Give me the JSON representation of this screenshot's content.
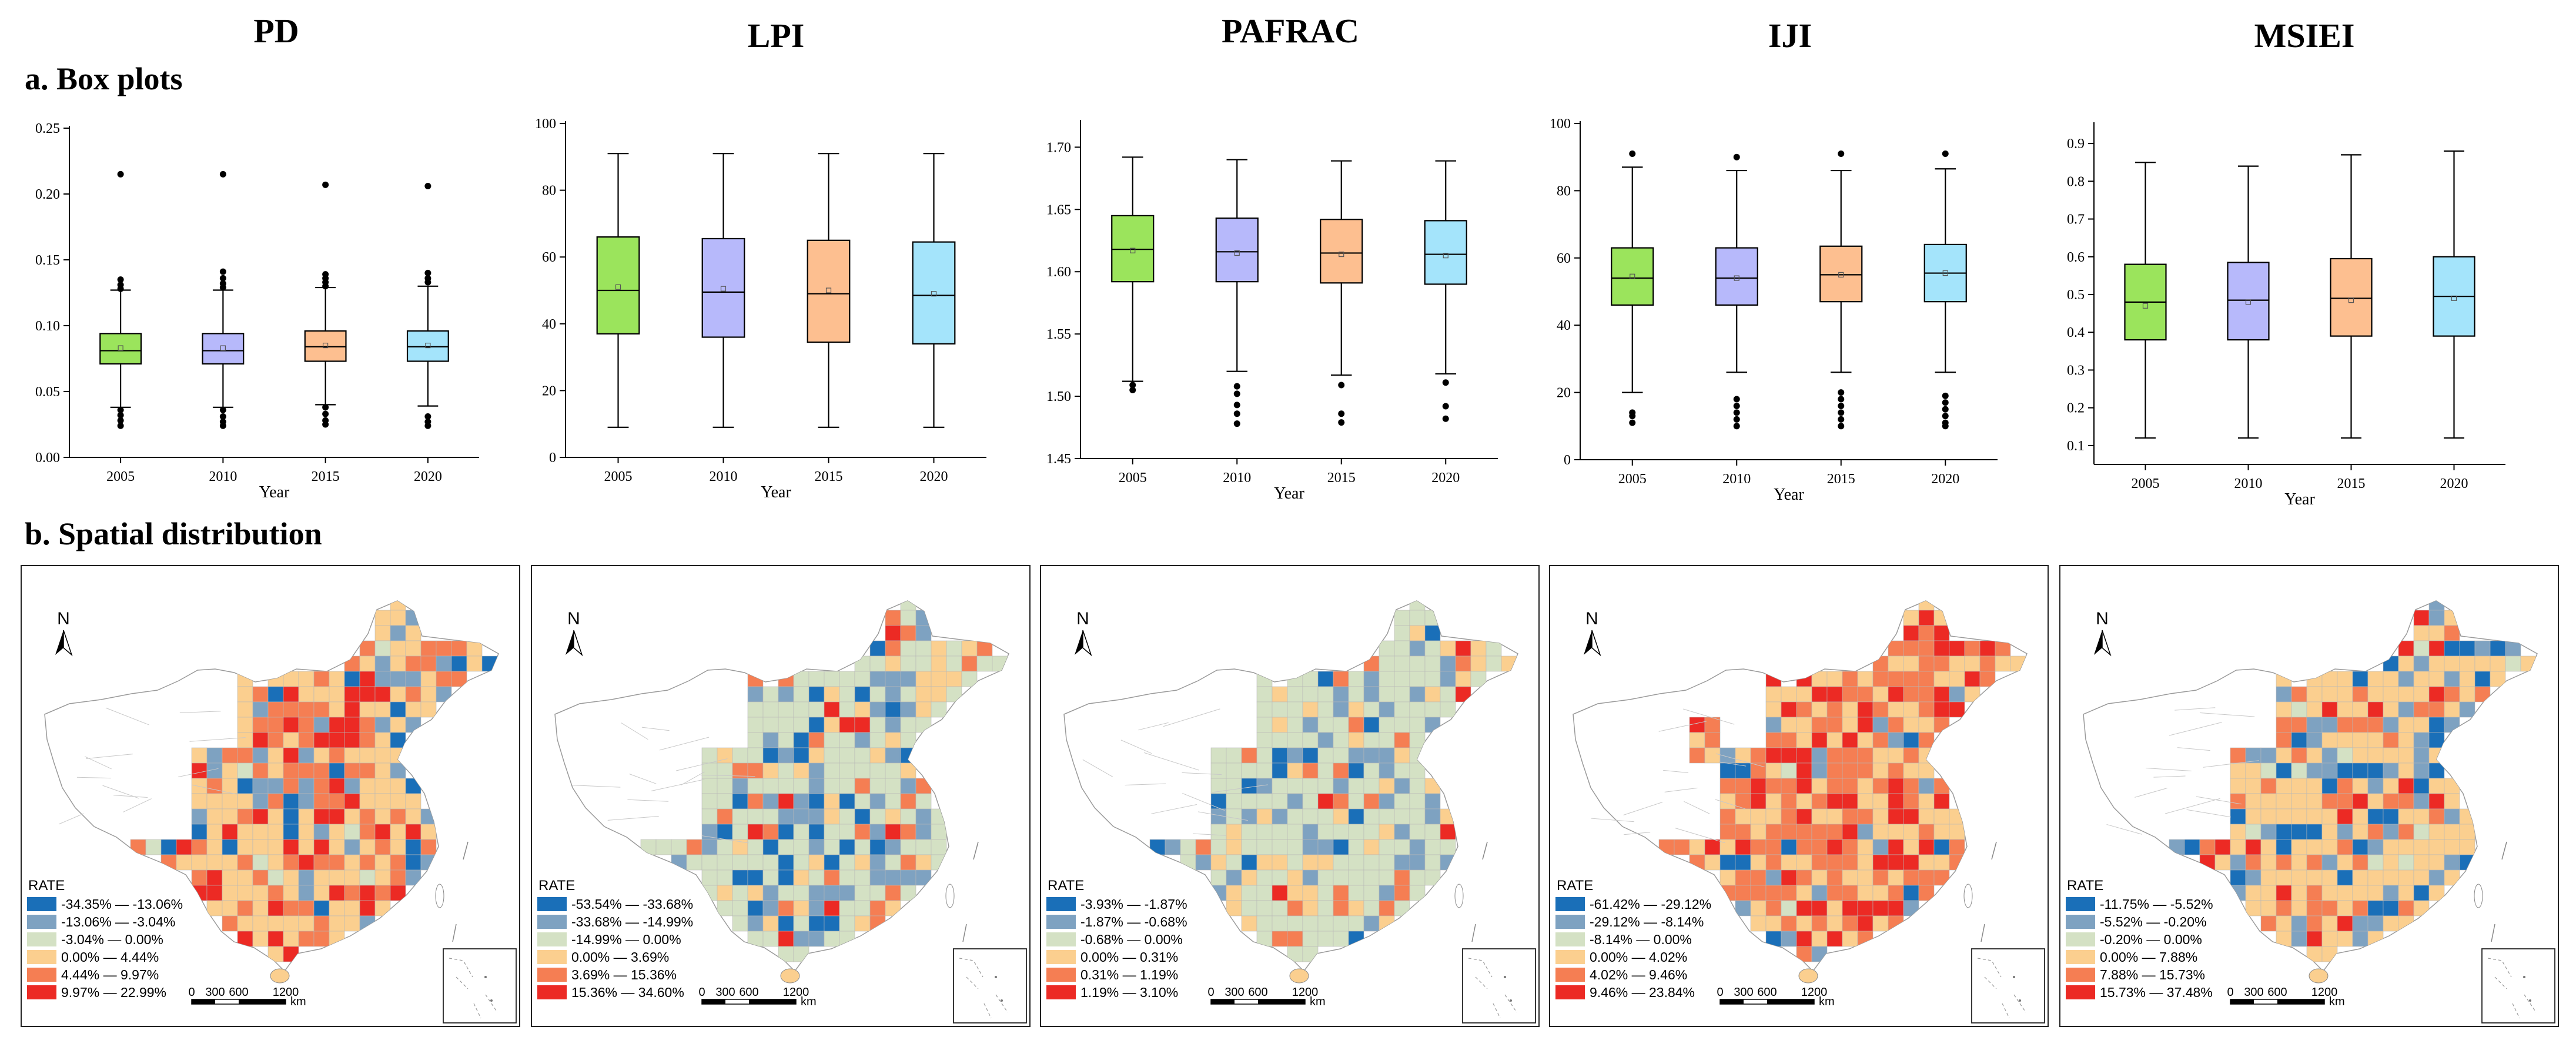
{
  "section_a_title": "a. Box plots",
  "section_b_title": "b. Spatial distribution",
  "colors": {
    "year_fills": [
      "#9be45c",
      "#b7b9fb",
      "#fdbf90",
      "#a4e4fb"
    ],
    "rate_colors": [
      "#1a6fb8",
      "#7ea2c1",
      "#d4e1c4",
      "#fbcf8f",
      "#f57e53",
      "#ec2a24"
    ]
  },
  "chart_data": [
    {
      "type": "box",
      "metric": "PD",
      "title": "PD",
      "xlabel": "Year",
      "categories": [
        "2005",
        "2010",
        "2015",
        "2020"
      ],
      "ylim": [
        0,
        0.25
      ],
      "yticks": [
        0,
        0.05,
        0.1,
        0.15,
        0.2,
        0.25
      ],
      "ytick_labels": [
        "0.00",
        "0.05",
        "0.10",
        "0.15",
        "0.20",
        "0.25"
      ],
      "boxes": [
        {
          "year": "2005",
          "whisker_low": 0.038,
          "q1": 0.071,
          "median": 0.081,
          "q3": 0.094,
          "whisker_high": 0.127,
          "mean": 0.083,
          "outliers": [
            0.215,
            0.135,
            0.131,
            0.128,
            0.036,
            0.032,
            0.028,
            0.024
          ]
        },
        {
          "year": "2010",
          "whisker_low": 0.038,
          "q1": 0.071,
          "median": 0.081,
          "q3": 0.094,
          "whisker_high": 0.127,
          "mean": 0.083,
          "outliers": [
            0.215,
            0.141,
            0.136,
            0.132,
            0.129,
            0.036,
            0.031,
            0.027,
            0.024
          ]
        },
        {
          "year": "2015",
          "whisker_low": 0.04,
          "q1": 0.073,
          "median": 0.084,
          "q3": 0.096,
          "whisker_high": 0.129,
          "mean": 0.085,
          "outliers": [
            0.207,
            0.139,
            0.136,
            0.133,
            0.13,
            0.038,
            0.033,
            0.028,
            0.025
          ]
        },
        {
          "year": "2020",
          "whisker_low": 0.039,
          "q1": 0.073,
          "median": 0.084,
          "q3": 0.096,
          "whisker_high": 0.13,
          "mean": 0.085,
          "outliers": [
            0.206,
            0.14,
            0.136,
            0.133,
            0.031,
            0.027,
            0.024
          ]
        }
      ]
    },
    {
      "type": "box",
      "metric": "LPI",
      "title": "LPI",
      "xlabel": "Year",
      "categories": [
        "2005",
        "2010",
        "2015",
        "2020"
      ],
      "ylim": [
        0,
        100
      ],
      "yticks": [
        0,
        20,
        40,
        60,
        80,
        100
      ],
      "ytick_labels": [
        "0",
        "20",
        "40",
        "60",
        "80",
        "100"
      ],
      "boxes": [
        {
          "year": "2005",
          "whisker_low": 9,
          "q1": 37,
          "median": 50,
          "q3": 66,
          "whisker_high": 91,
          "mean": 51,
          "outliers": []
        },
        {
          "year": "2010",
          "whisker_low": 9,
          "q1": 36,
          "median": 49.5,
          "q3": 65.5,
          "whisker_high": 91,
          "mean": 50.5,
          "outliers": []
        },
        {
          "year": "2015",
          "whisker_low": 9,
          "q1": 34.5,
          "median": 49,
          "q3": 65,
          "whisker_high": 91,
          "mean": 50,
          "outliers": []
        },
        {
          "year": "2020",
          "whisker_low": 9,
          "q1": 34,
          "median": 48.5,
          "q3": 64.5,
          "whisker_high": 91,
          "mean": 49,
          "outliers": []
        }
      ]
    },
    {
      "type": "box",
      "metric": "PAFRAC",
      "title": "PAFRAC",
      "xlabel": "Year",
      "categories": [
        "2005",
        "2010",
        "2015",
        "2020"
      ],
      "ylim": [
        1.45,
        1.72
      ],
      "yticks": [
        1.45,
        1.5,
        1.55,
        1.6,
        1.65,
        1.7
      ],
      "ytick_labels": [
        "1.45",
        "1.50",
        "1.55",
        "1.60",
        "1.65",
        "1.70"
      ],
      "boxes": [
        {
          "year": "2005",
          "whisker_low": 1.512,
          "q1": 1.592,
          "median": 1.618,
          "q3": 1.645,
          "whisker_high": 1.692,
          "mean": 1.617,
          "outliers": [
            1.509,
            1.505
          ]
        },
        {
          "year": "2010",
          "whisker_low": 1.52,
          "q1": 1.592,
          "median": 1.616,
          "q3": 1.643,
          "whisker_high": 1.69,
          "mean": 1.615,
          "outliers": [
            1.508,
            1.502,
            1.493,
            1.486,
            1.478
          ]
        },
        {
          "year": "2015",
          "whisker_low": 1.517,
          "q1": 1.591,
          "median": 1.615,
          "q3": 1.642,
          "whisker_high": 1.689,
          "mean": 1.614,
          "outliers": [
            1.509,
            1.486,
            1.479
          ]
        },
        {
          "year": "2020",
          "whisker_low": 1.518,
          "q1": 1.59,
          "median": 1.614,
          "q3": 1.641,
          "whisker_high": 1.689,
          "mean": 1.613,
          "outliers": [
            1.511,
            1.492,
            1.482
          ]
        }
      ]
    },
    {
      "type": "box",
      "metric": "IJI",
      "title": "IJI",
      "xlabel": "Year",
      "categories": [
        "2005",
        "2010",
        "2015",
        "2020"
      ],
      "ylim": [
        0,
        100
      ],
      "yticks": [
        0,
        20,
        40,
        60,
        80,
        100
      ],
      "ytick_labels": [
        "0",
        "20",
        "40",
        "60",
        "80",
        "100"
      ],
      "boxes": [
        {
          "year": "2005",
          "whisker_low": 20,
          "q1": 46,
          "median": 54,
          "q3": 63,
          "whisker_high": 87,
          "mean": 54.5,
          "outliers": [
            91,
            14,
            13,
            11
          ]
        },
        {
          "year": "2010",
          "whisker_low": 26,
          "q1": 46,
          "median": 54,
          "q3": 63,
          "whisker_high": 86,
          "mean": 54,
          "outliers": [
            90,
            18,
            16,
            14,
            12,
            10
          ]
        },
        {
          "year": "2015",
          "whisker_low": 26,
          "q1": 47,
          "median": 55,
          "q3": 63.5,
          "whisker_high": 86,
          "mean": 55,
          "outliers": [
            91,
            20,
            18,
            16,
            14,
            12,
            10
          ]
        },
        {
          "year": "2020",
          "whisker_low": 26,
          "q1": 47,
          "median": 55.5,
          "q3": 64,
          "whisker_high": 86.5,
          "mean": 55.5,
          "outliers": [
            91,
            19,
            17,
            15,
            13,
            11,
            10
          ]
        }
      ]
    },
    {
      "type": "box",
      "metric": "MSIEI",
      "title": "MSIEI",
      "xlabel": "Year",
      "categories": [
        "2005",
        "2010",
        "2015",
        "2020"
      ],
      "ylim": [
        0.05,
        0.95
      ],
      "yticks": [
        0.1,
        0.2,
        0.3,
        0.4,
        0.5,
        0.6,
        0.7,
        0.8,
        0.9
      ],
      "ytick_labels": [
        "0.1",
        "0.2",
        "0.3",
        "0.4",
        "0.5",
        "0.6",
        "0.7",
        "0.8",
        "0.9"
      ],
      "boxes": [
        {
          "year": "2005",
          "whisker_low": 0.12,
          "q1": 0.38,
          "median": 0.48,
          "q3": 0.58,
          "whisker_high": 0.85,
          "mean": 0.47,
          "outliers": []
        },
        {
          "year": "2010",
          "whisker_low": 0.12,
          "q1": 0.38,
          "median": 0.485,
          "q3": 0.585,
          "whisker_high": 0.84,
          "mean": 0.48,
          "outliers": []
        },
        {
          "year": "2015",
          "whisker_low": 0.12,
          "q1": 0.39,
          "median": 0.49,
          "q3": 0.595,
          "whisker_high": 0.87,
          "mean": 0.485,
          "outliers": []
        },
        {
          "year": "2020",
          "whisker_low": 0.12,
          "q1": 0.39,
          "median": 0.495,
          "q3": 0.6,
          "whisker_high": 0.88,
          "mean": 0.49,
          "outliers": []
        }
      ]
    }
  ],
  "maps": [
    {
      "metric": "PD",
      "legend_title": "RATE",
      "north_label": "N",
      "scale_labels": [
        "0",
        "300",
        "600",
        "1200"
      ],
      "scale_unit": "km",
      "legend": [
        "-34.35% — -13.06%",
        "-13.06% — -3.04%",
        "-3.04% — 0.00%",
        "0.00% — 4.44%",
        "4.44% — 9.97%",
        "9.97% — 22.99%"
      ]
    },
    {
      "metric": "LPI",
      "legend_title": "RATE",
      "north_label": "N",
      "scale_labels": [
        "0",
        "300",
        "600",
        "1200"
      ],
      "scale_unit": "km",
      "legend": [
        "-53.54% — -33.68%",
        "-33.68% — -14.99%",
        "-14.99% — 0.00%",
        "0.00% — 3.69%",
        "3.69% — 15.36%",
        "15.36% — 34.60%"
      ]
    },
    {
      "metric": "PAFRAC",
      "legend_title": "RATE",
      "north_label": "N",
      "scale_labels": [
        "0",
        "300",
        "600",
        "1200"
      ],
      "scale_unit": "km",
      "legend": [
        "-3.93% — -1.87%",
        "-1.87% — -0.68%",
        "-0.68% — 0.00%",
        "0.00% — 0.31%",
        "0.31% — 1.19%",
        "1.19% — 3.10%"
      ]
    },
    {
      "metric": "IJI",
      "legend_title": "RATE",
      "north_label": "N",
      "scale_labels": [
        "0",
        "300",
        "600",
        "1200"
      ],
      "scale_unit": "km",
      "legend": [
        "-61.42% — -29.12%",
        "-29.12% — -8.14%",
        "-8.14% — 0.00%",
        "0.00% — 4.02%",
        "4.02% — 9.46%",
        "9.46% — 23.84%"
      ]
    },
    {
      "metric": "MSIEI",
      "legend_title": "RATE",
      "north_label": "N",
      "scale_labels": [
        "0",
        "300",
        "600",
        "1200"
      ],
      "scale_unit": "km",
      "legend": [
        "-11.75% — -5.52%",
        "-5.52% — -0.20%",
        "-0.20% — 0.00%",
        "0.00% — 7.88%",
        "7.88% — 15.73%",
        "15.73% — 37.48%"
      ]
    }
  ]
}
